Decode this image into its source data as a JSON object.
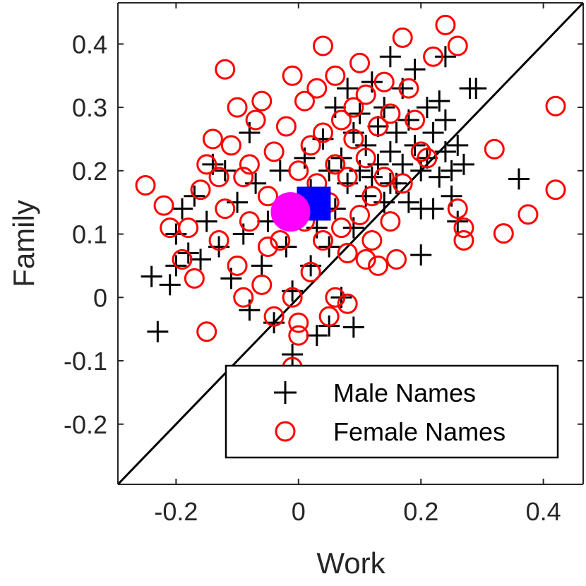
{
  "chart_data": {
    "type": "scatter",
    "xlabel": "Work",
    "ylabel": "Family",
    "xlim": [
      -0.295,
      0.465
    ],
    "ylim": [
      -0.295,
      0.465
    ],
    "x_ticks": [
      "-0.2",
      "0",
      "0.2",
      "0.4"
    ],
    "y_ticks": [
      "-0.2",
      "-0.1",
      "0",
      "0.1",
      "0.2",
      "0.3",
      "0.4"
    ],
    "grid": false,
    "legend": {
      "placement": "bottom-right",
      "entries": [
        "Male Names",
        "Female Names"
      ]
    },
    "reference_line": {
      "type": "y=x",
      "color": "#000000"
    },
    "colors": {
      "male": "#000000",
      "female": "#ff0000",
      "male_mean": "#0000ff",
      "female_mean": "#ff00ff"
    },
    "series": [
      {
        "name": "Male Names",
        "marker": "plus",
        "points": [
          [
            -0.24,
            0.033
          ],
          [
            -0.23,
            -0.054
          ],
          [
            -0.21,
            0.02
          ],
          [
            -0.2,
            0.05
          ],
          [
            -0.19,
            0.14
          ],
          [
            -0.2,
            0.1
          ],
          [
            -0.18,
            0.07
          ],
          [
            -0.17,
            0.16
          ],
          [
            -0.16,
            0.06
          ],
          [
            -0.15,
            0.12
          ],
          [
            -0.14,
            0.21
          ],
          [
            -0.13,
            0.08
          ],
          [
            -0.12,
            0.2
          ],
          [
            -0.11,
            0.03
          ],
          [
            -0.1,
            0.15
          ],
          [
            -0.09,
            0.1
          ],
          [
            -0.08,
            0.26
          ],
          [
            -0.07,
            0.18
          ],
          [
            -0.06,
            0.05
          ],
          [
            -0.05,
            0.12
          ],
          [
            -0.04,
            -0.04
          ],
          [
            -0.03,
            0.2
          ],
          [
            -0.02,
            0.08
          ],
          [
            -0.01,
            0.01
          ],
          [
            0.0,
            0.14
          ],
          [
            -0.01,
            -0.09
          ],
          [
            0.01,
            0.22
          ],
          [
            0.02,
            0.17
          ],
          [
            0.02,
            0.05
          ],
          [
            0.03,
            0.11
          ],
          [
            0.03,
            -0.06
          ],
          [
            0.04,
            0.25
          ],
          [
            0.05,
            0.2
          ],
          [
            0.05,
            0.08
          ],
          [
            0.06,
            0.3
          ],
          [
            0.06,
            0.14
          ],
          [
            0.07,
            0.0
          ],
          [
            0.07,
            0.22
          ],
          [
            0.08,
            0.18
          ],
          [
            0.08,
            0.33
          ],
          [
            0.09,
            0.26
          ],
          [
            0.09,
            0.11
          ],
          [
            0.1,
            0.2
          ],
          [
            0.1,
            0.29
          ],
          [
            0.11,
            0.16
          ],
          [
            0.11,
            0.24
          ],
          [
            0.12,
            0.34
          ],
          [
            0.12,
            0.19
          ],
          [
            0.13,
            0.27
          ],
          [
            0.13,
            0.21
          ],
          [
            0.14,
            0.15
          ],
          [
            0.14,
            0.3
          ],
          [
            0.15,
            0.23
          ],
          [
            0.15,
            0.38
          ],
          [
            0.16,
            0.26
          ],
          [
            0.16,
            0.18
          ],
          [
            0.17,
            0.33
          ],
          [
            0.17,
            0.21
          ],
          [
            0.18,
            0.28
          ],
          [
            0.18,
            0.15
          ],
          [
            0.19,
            0.24
          ],
          [
            0.19,
            0.36
          ],
          [
            0.2,
            0.2
          ],
          [
            0.2,
            0.067
          ],
          [
            0.21,
            0.3
          ],
          [
            0.21,
            0.22
          ],
          [
            0.22,
            0.26
          ],
          [
            0.22,
            0.14
          ],
          [
            0.23,
            0.19
          ],
          [
            0.23,
            0.31
          ],
          [
            0.24,
            0.23
          ],
          [
            0.24,
            0.28
          ],
          [
            0.25,
            0.2
          ],
          [
            0.25,
            0.16
          ],
          [
            0.26,
            0.24
          ],
          [
            0.26,
            0.12
          ],
          [
            0.27,
            0.21
          ],
          [
            0.28,
            0.33
          ],
          [
            0.29,
            0.33
          ],
          [
            0.36,
            0.187
          ],
          [
            0.09,
            -0.047
          ],
          [
            0.05,
            -0.045
          ],
          [
            -0.08,
            -0.02
          ],
          [
            0.15,
            0.18
          ],
          [
            0.2,
            0.14
          ],
          [
            0.24,
            0.38
          ]
        ]
      },
      {
        "name": "Female Names",
        "marker": "circle",
        "points": [
          [
            -0.25,
            0.177
          ],
          [
            -0.22,
            0.145
          ],
          [
            -0.21,
            0.11
          ],
          [
            -0.19,
            0.06
          ],
          [
            -0.18,
            0.11
          ],
          [
            -0.17,
            0.03
          ],
          [
            -0.16,
            0.17
          ],
          [
            -0.15,
            0.21
          ],
          [
            -0.15,
            -0.054
          ],
          [
            -0.14,
            0.25
          ],
          [
            -0.13,
            0.09
          ],
          [
            -0.12,
            0.36
          ],
          [
            -0.12,
            0.14
          ],
          [
            -0.11,
            0.24
          ],
          [
            -0.1,
            0.3
          ],
          [
            -0.1,
            0.05
          ],
          [
            -0.09,
            0.19
          ],
          [
            -0.08,
            0.12
          ],
          [
            -0.07,
            0.28
          ],
          [
            -0.06,
            0.31
          ],
          [
            -0.06,
            0.02
          ],
          [
            -0.05,
            0.16
          ],
          [
            -0.04,
            0.23
          ],
          [
            -0.04,
            -0.03
          ],
          [
            -0.03,
            0.09
          ],
          [
            -0.02,
            0.27
          ],
          [
            -0.01,
            0.35
          ],
          [
            -0.01,
            0.0
          ],
          [
            0.0,
            0.2
          ],
          [
            0.0,
            -0.06
          ],
          [
            0.01,
            0.12
          ],
          [
            0.01,
            0.31
          ],
          [
            0.02,
            0.24
          ],
          [
            0.02,
            0.04
          ],
          [
            0.03,
            0.18
          ],
          [
            0.03,
            0.33
          ],
          [
            0.04,
            0.09
          ],
          [
            0.04,
            0.26
          ],
          [
            0.05,
            0.15
          ],
          [
            0.05,
            -0.03
          ],
          [
            0.06,
            0.21
          ],
          [
            0.06,
            0.35
          ],
          [
            0.07,
            0.11
          ],
          [
            0.07,
            0.28
          ],
          [
            0.08,
            0.07
          ],
          [
            0.08,
            0.19
          ],
          [
            0.09,
            0.3
          ],
          [
            0.09,
            0.25
          ],
          [
            0.1,
            0.37
          ],
          [
            0.1,
            0.13
          ],
          [
            0.11,
            0.22
          ],
          [
            0.11,
            0.32
          ],
          [
            0.12,
            0.16
          ],
          [
            0.12,
            0.09
          ],
          [
            0.13,
            0.27
          ],
          [
            0.14,
            0.34
          ],
          [
            0.14,
            0.19
          ],
          [
            0.15,
            0.29
          ],
          [
            0.16,
            0.06
          ],
          [
            0.17,
            0.41
          ],
          [
            0.17,
            0.18
          ],
          [
            0.18,
            0.33
          ],
          [
            0.19,
            0.28
          ],
          [
            0.2,
            0.23
          ],
          [
            0.21,
            0.22
          ],
          [
            0.22,
            0.38
          ],
          [
            0.24,
            0.43
          ],
          [
            0.26,
            0.14
          ],
          [
            0.26,
            0.397
          ],
          [
            0.27,
            0.09
          ],
          [
            0.27,
            0.11
          ],
          [
            0.32,
            0.234
          ],
          [
            0.335,
            0.101
          ],
          [
            0.375,
            0.131
          ],
          [
            0.42,
            0.302
          ],
          [
            0.42,
            0.17
          ],
          [
            0.04,
            0.397
          ],
          [
            -0.01,
            -0.11
          ],
          [
            0.0,
            -0.04
          ],
          [
            -0.05,
            0.08
          ],
          [
            -0.08,
            0.21
          ],
          [
            0.13,
            0.05
          ],
          [
            0.15,
            0.12
          ],
          [
            -0.02,
            0.14
          ],
          [
            0.06,
            0.0
          ],
          [
            0.11,
            0.06
          ],
          [
            -0.13,
            0.19
          ],
          [
            -0.09,
            0.0
          ],
          [
            0.03,
            0.14
          ],
          [
            0.08,
            -0.01
          ]
        ]
      }
    ],
    "means": [
      {
        "name": "Male Names mean",
        "marker": "square",
        "x": 0.025,
        "y": 0.148
      },
      {
        "name": "Female Names mean",
        "marker": "filled-circle",
        "x": -0.013,
        "y": 0.135
      }
    ]
  }
}
